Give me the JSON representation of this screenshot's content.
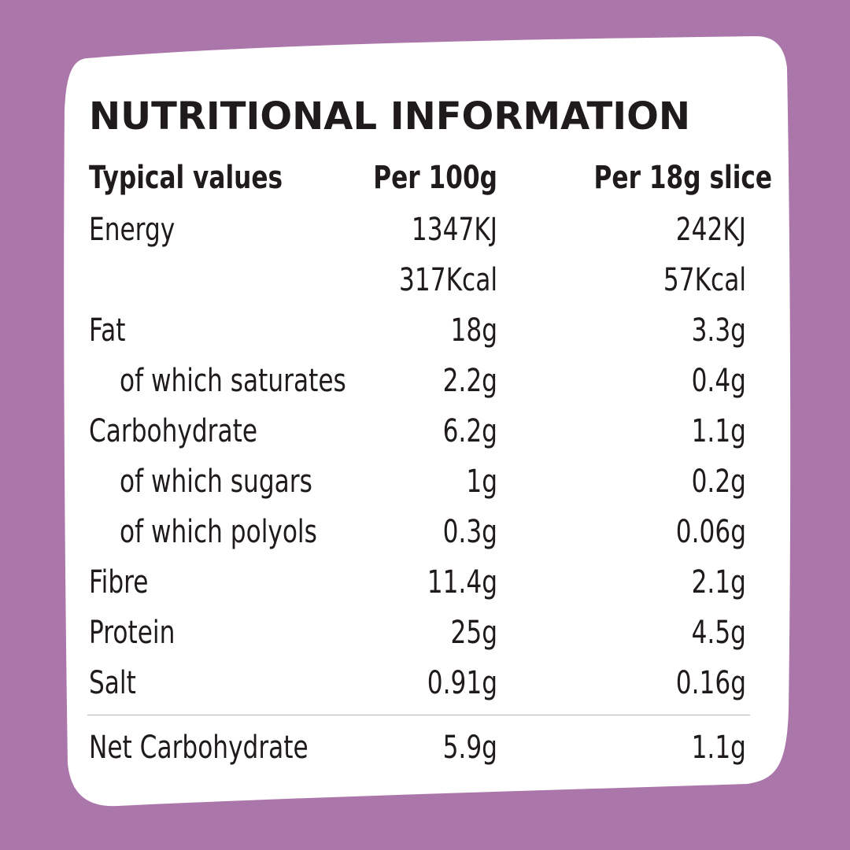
{
  "colors": {
    "background": "#ab77aa",
    "panel": "#ffffff",
    "text": "#1f1a1c",
    "divider": "#b8b0b6"
  },
  "title": "NUTRITIONAL INFORMATION",
  "header": {
    "label": "Typical values",
    "col1": "Per 100g",
    "col2": "Per 18g slice"
  },
  "rows": [
    {
      "label": "Energy",
      "col1": "1347KJ",
      "col2": "242KJ"
    },
    {
      "label": "",
      "col1": "317Kcal",
      "col2": "57Kcal"
    },
    {
      "label": "Fat",
      "col1": "18g",
      "col2": "3.3g"
    },
    {
      "label": "of which saturates",
      "col1": "2.2g",
      "col2": "0.4g"
    },
    {
      "label": "Carbohydrate",
      "col1": "6.2g",
      "col2": "1.1g"
    },
    {
      "label": "of which sugars",
      "col1": "1g",
      "col2": "0.2g"
    },
    {
      "label": "of which polyols",
      "col1": "0.3g",
      "col2": "0.06g"
    },
    {
      "label": "Fibre",
      "col1": "11.4g",
      "col2": "2.1g"
    },
    {
      "label": "Protein",
      "col1": "25g",
      "col2": "4.5g"
    },
    {
      "label": "Salt",
      "col1": "0.91g",
      "col2": "0.16g"
    }
  ],
  "footer": {
    "label": "Net Carbohydrate",
    "col1": "5.9g",
    "col2": "1.1g"
  }
}
